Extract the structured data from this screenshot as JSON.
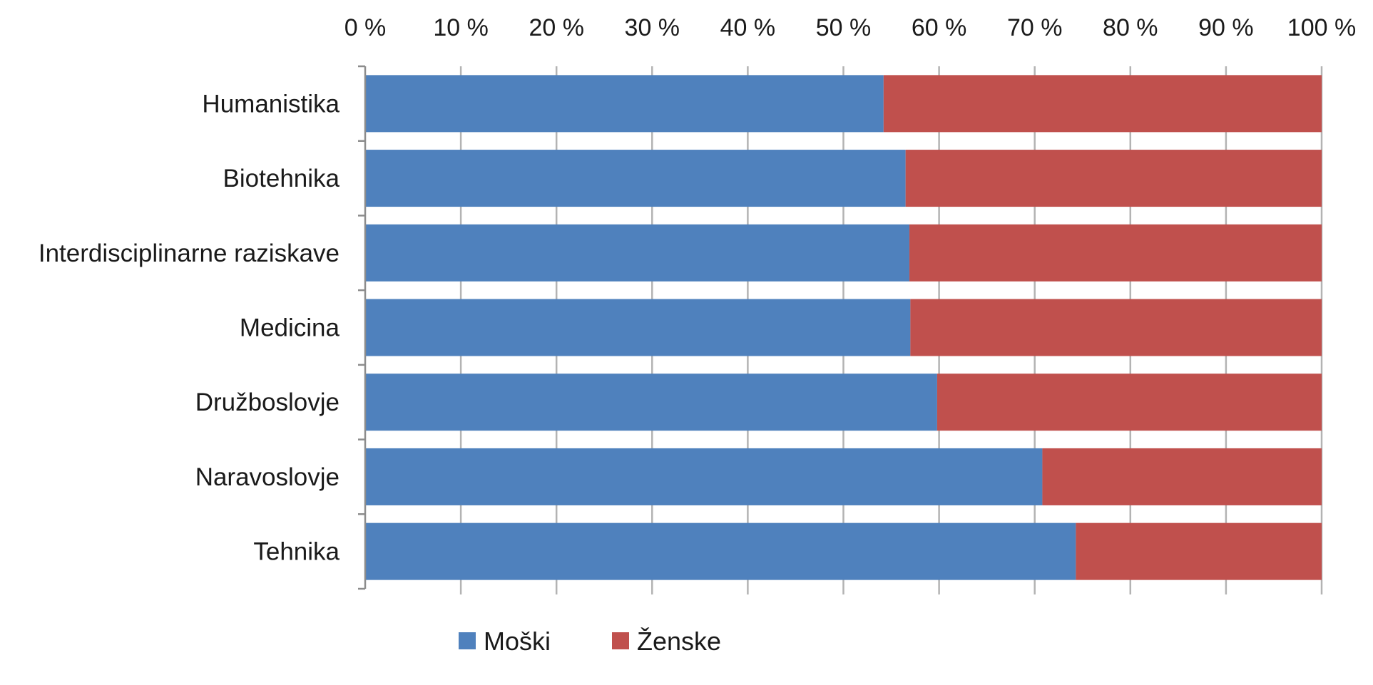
{
  "chart_data": {
    "type": "bar",
    "orientation": "horizontal",
    "stacked": true,
    "percent_stacked": true,
    "title": "",
    "xlabel": "",
    "ylabel": "",
    "xlim": [
      0,
      100
    ],
    "x_axis_position": "top",
    "x_tick_values": [
      0,
      10,
      20,
      30,
      40,
      50,
      60,
      70,
      80,
      90,
      100
    ],
    "x_ticks": [
      "0 %",
      "10 %",
      "20 %",
      "30 %",
      "40 %",
      "50 %",
      "60 %",
      "70 %",
      "80 %",
      "90 %",
      "100 %"
    ],
    "grid": "vertical",
    "legend_position": "bottom",
    "categories": [
      "Humanistika",
      "Biotehnika",
      "Interdisciplinarne raziskave",
      "Medicina",
      "Družboslovje",
      "Naravoslovje",
      "Tehnika"
    ],
    "series": [
      {
        "name": "Moški",
        "color": "#4F81BD",
        "values": [
          54.2,
          56.5,
          56.9,
          57.0,
          59.8,
          70.8,
          74.3
        ]
      },
      {
        "name": "Ženske",
        "color": "#C0504D",
        "values": [
          45.8,
          43.5,
          43.1,
          43.0,
          40.2,
          29.2,
          25.7
        ]
      }
    ]
  }
}
